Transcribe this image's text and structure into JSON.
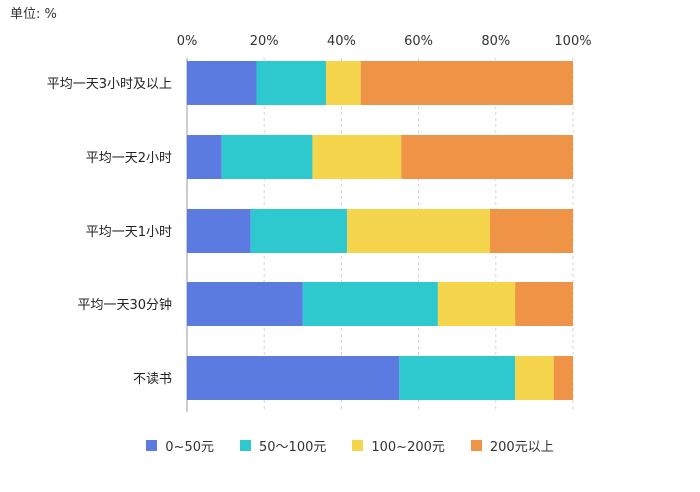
{
  "unit_label": "单位: %",
  "chart_data": {
    "type": "bar",
    "orientation": "horizontal",
    "stacked": true,
    "title": "",
    "xlabel": "",
    "ylabel": "",
    "xlim": [
      0,
      100
    ],
    "x_ticks": [
      "0%",
      "20%",
      "40%",
      "60%",
      "80%",
      "100%"
    ],
    "grid": "vertical-dashed",
    "legend_position": "bottom",
    "categories": [
      "平均一天3小时及以上",
      "平均一天2小时",
      "平均一天1小时",
      "平均一天30分钟",
      "不读书"
    ],
    "series": [
      {
        "name": "0~50元",
        "color": "#5b7be0",
        "values": [
          18,
          9,
          16.5,
          30,
          55
        ]
      },
      {
        "name": "50～100元",
        "color": "#2ec8cf",
        "values": [
          18,
          23.5,
          25,
          35,
          30
        ]
      },
      {
        "name": "100~200元",
        "color": "#f5d54c",
        "values": [
          9,
          23,
          37,
          20,
          10
        ]
      },
      {
        "name": "200元以上",
        "color": "#ef9446",
        "values": [
          55,
          44.5,
          21.5,
          15,
          5
        ]
      }
    ]
  }
}
